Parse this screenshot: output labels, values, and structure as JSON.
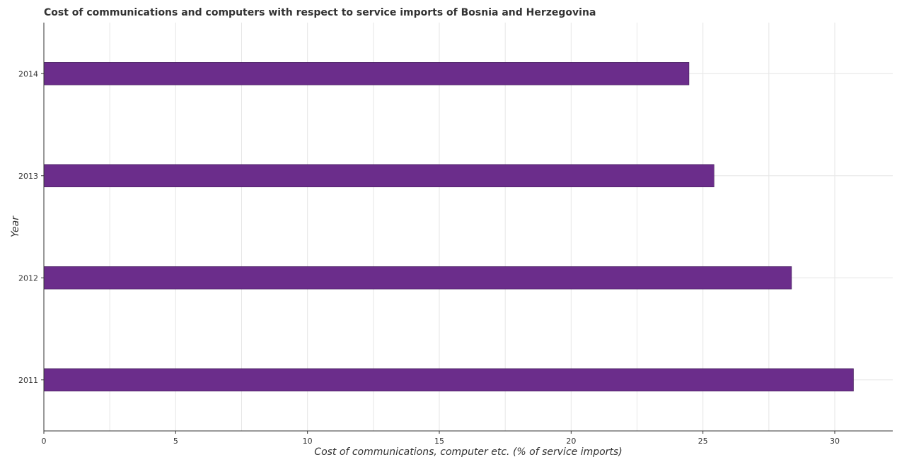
{
  "chart_data": {
    "type": "bar",
    "orientation": "horizontal",
    "title": "Cost of communications and computers with respect to service imports of Bosnia and Herzegovina",
    "xlabel": "Cost of communications, computer etc. (% of service imports)",
    "ylabel": "Year",
    "categories": [
      "2011",
      "2012",
      "2013",
      "2014"
    ],
    "values": [
      30.71,
      28.36,
      25.42,
      24.47
    ],
    "xlim": [
      0,
      32.2
    ],
    "xticks": [
      0,
      5,
      10,
      15,
      20,
      25,
      30
    ],
    "xtick_labels": [
      "0",
      "5",
      "10",
      "15",
      "20",
      "25",
      "30"
    ],
    "grid": true,
    "bar_color": "#6b2d8b",
    "bar_stroke": "#3a1450"
  }
}
